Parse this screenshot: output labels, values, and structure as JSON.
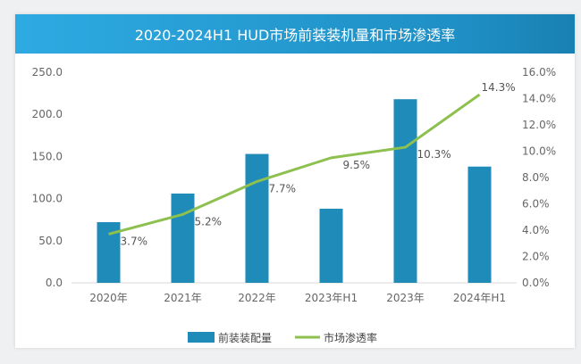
{
  "chart_data": {
    "type": "bar+line",
    "title": "2020-2024H1 HUD市场前装装机量和市场渗透率",
    "categories": [
      "2020年",
      "2021年",
      "2022年",
      "2023年H1",
      "2023年",
      "2024年H1"
    ],
    "series": [
      {
        "name": "前装装配量",
        "type": "bar",
        "axis": "left",
        "color": "#1f8bb8",
        "values": [
          72,
          106,
          153,
          88,
          218,
          138
        ]
      },
      {
        "name": "市场渗透率",
        "type": "line",
        "axis": "right",
        "color": "#8dc04f",
        "values": [
          3.7,
          5.2,
          7.7,
          9.5,
          10.3,
          14.3
        ],
        "labels": [
          "3.7%",
          "5.2%",
          "7.7%",
          "9.5%",
          "10.3%",
          "14.3%"
        ]
      }
    ],
    "left_axis": {
      "ylim": [
        0,
        250
      ],
      "ticks": [
        "0.0",
        "50.0",
        "100.0",
        "150.0",
        "200.0",
        "250.0"
      ]
    },
    "right_axis": {
      "ylim": [
        0,
        16
      ],
      "ticks": [
        "0.0%",
        "2.0%",
        "4.0%",
        "6.0%",
        "8.0%",
        "10.0%",
        "12.0%",
        "14.0%",
        "16.0%"
      ]
    },
    "legend": "bottom",
    "grid": false
  }
}
